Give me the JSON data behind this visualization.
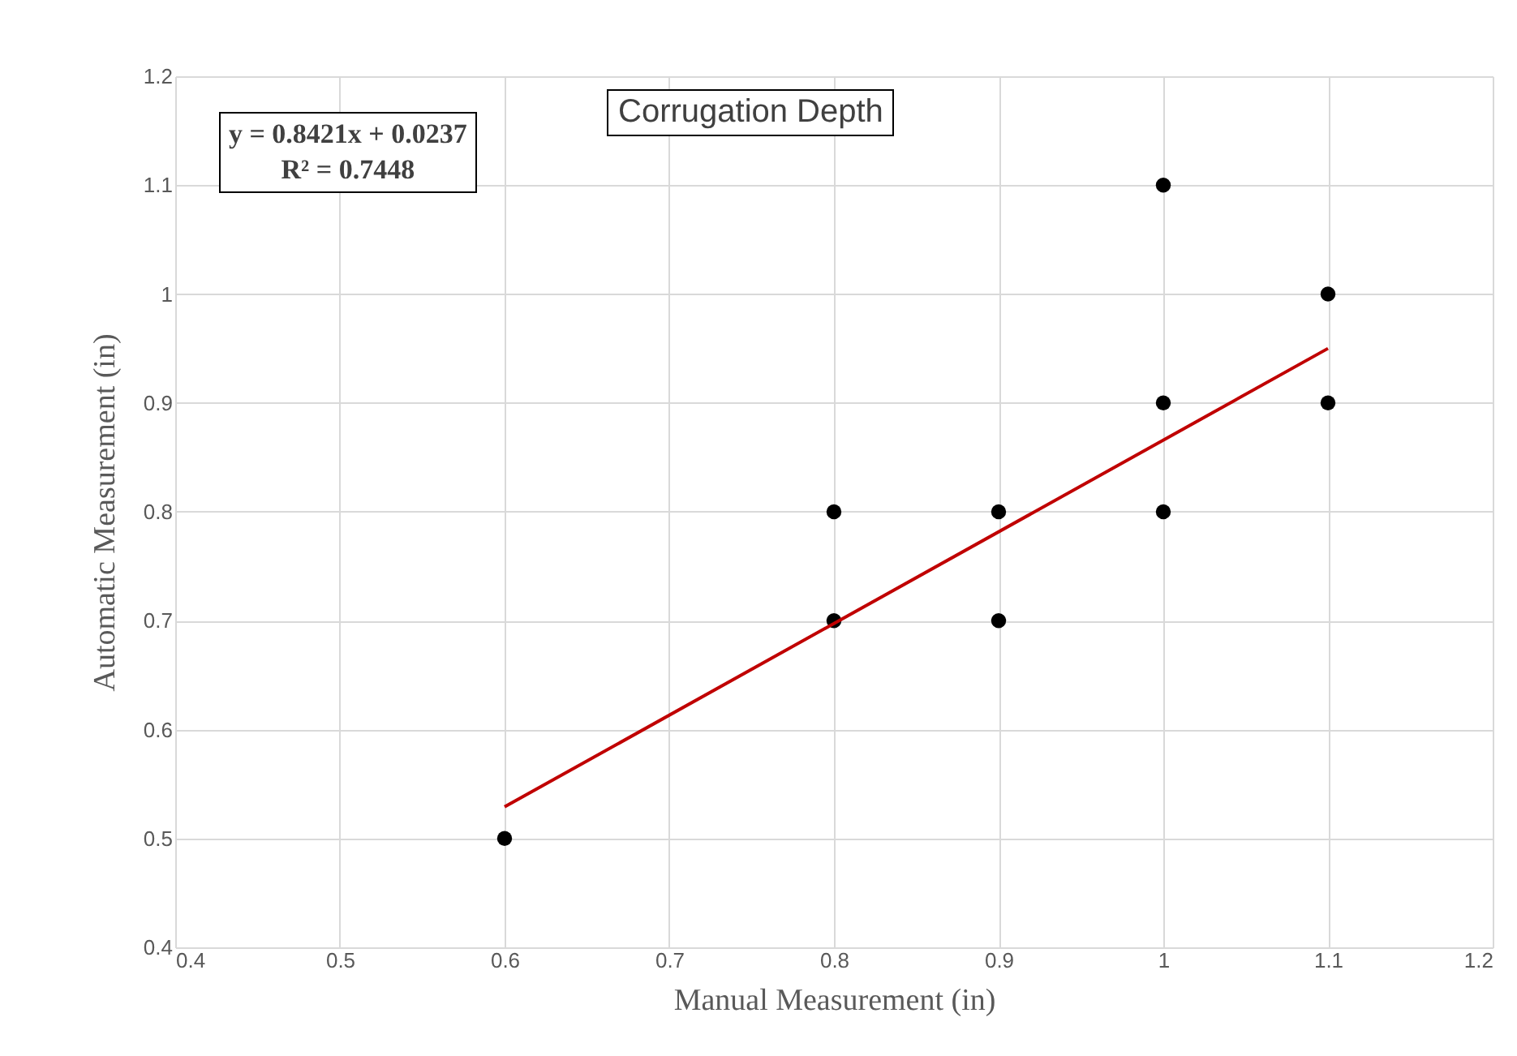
{
  "chart_data": {
    "type": "scatter",
    "title": "Corrugation Depth",
    "xlabel": "Manual Measurement (in)",
    "ylabel": "Automatic Measurement (in)",
    "annotations": [
      "y = 0.8421x + 0.0237",
      "R² = 0.7448"
    ],
    "xlim": [
      0.4,
      1.2
    ],
    "xticks": [
      0.4,
      0.5,
      0.6,
      0.7,
      0.8,
      0.9,
      1,
      1.1,
      1.2
    ],
    "ylim": [
      0.4,
      1.2
    ],
    "yticks": [
      0.4,
      0.5,
      0.6,
      0.7,
      0.8,
      0.9,
      1,
      1.1,
      1.2
    ],
    "grid": true,
    "series": [
      {
        "marker": "circle",
        "color": "#000000",
        "x": [
          0.6,
          0.8,
          0.8,
          0.9,
          0.9,
          1,
          1,
          1,
          1.1,
          1.1
        ],
        "values": [
          0.5,
          0.8,
          0.7,
          0.8,
          0.7,
          1.1,
          0.9,
          0.8,
          1.0,
          0.9
        ]
      },
      {
        "type": "line",
        "marker": "none",
        "color": "#c00000",
        "x": [
          0.6,
          1.1
        ],
        "values": [
          0.529,
          0.95
        ]
      }
    ]
  }
}
